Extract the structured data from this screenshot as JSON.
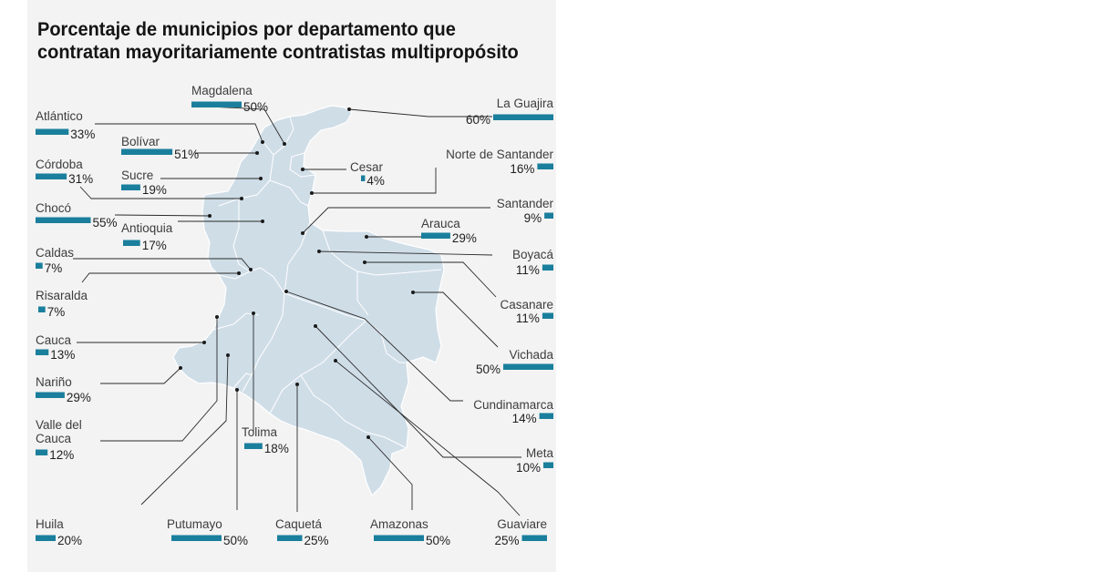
{
  "chart_data": {
    "type": "bar",
    "title": "Porcentaje de municipios por departamento que contratan mayoritariamente contratistas multipropósito",
    "unit": "%",
    "bar_color": "#1a7f9c",
    "map_color": "#cfdde7",
    "categories": [
      "Magdalena",
      "La Guajira",
      "Atlántico",
      "Bolívar",
      "Norte de Santander",
      "Córdoba",
      "Sucre",
      "Cesar",
      "Santander",
      "Chocó",
      "Antioquia",
      "Arauca",
      "Caldas",
      "Boyacá",
      "Risaralda",
      "Casanare",
      "Cauca",
      "Vichada",
      "Nariño",
      "Cundinamarca",
      "Valle del Cauca",
      "Tolima",
      "Meta",
      "Huila",
      "Putumayo",
      "Caquetá",
      "Amazonas",
      "Guaviare"
    ],
    "values": [
      50,
      60,
      33,
      51,
      16,
      31,
      19,
      4,
      9,
      55,
      17,
      29,
      7,
      11,
      7,
      11,
      13,
      50,
      29,
      14,
      12,
      18,
      10,
      20,
      50,
      25,
      50,
      25
    ],
    "value_labels": [
      "50%",
      "60%",
      "33%",
      "51%",
      "16%",
      "31%",
      "19%",
      "4%",
      "9%",
      "55%",
      "17%",
      "29%",
      "7%",
      "11%",
      "7%",
      "11%",
      "13%",
      "50%",
      "29%",
      "14%",
      "12%",
      "18%",
      "10%",
      "20%",
      "50%",
      "25%",
      "50%",
      "25%"
    ]
  }
}
